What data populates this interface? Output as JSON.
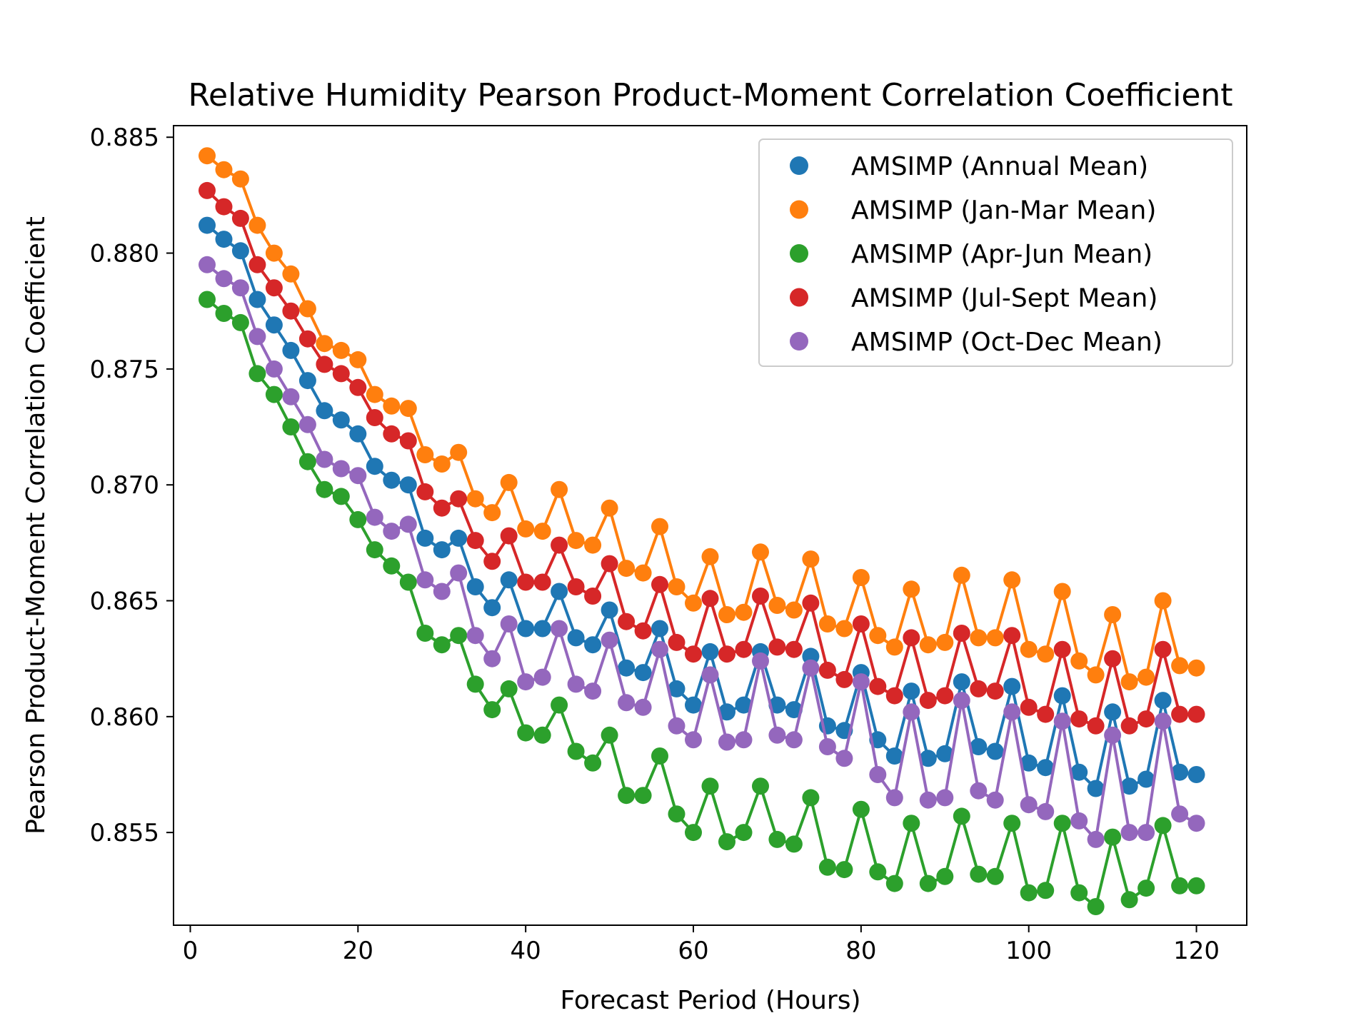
{
  "chart_data": {
    "type": "line",
    "title": "Relative Humidity Pearson Product-Moment Correlation Coefficient",
    "xlabel": "Forecast Period (Hours)",
    "ylabel": "Pearson Product-Moment Correlation Coefficient",
    "xlim": [
      -2,
      126
    ],
    "ylim": [
      0.851,
      0.8855
    ],
    "x_ticks": [
      0,
      20,
      40,
      60,
      80,
      100,
      120
    ],
    "y_ticks": [
      0.855,
      0.86,
      0.865,
      0.87,
      0.875,
      0.88,
      0.885
    ],
    "x_tick_labels": [
      "0",
      "20",
      "40",
      "60",
      "80",
      "100",
      "120"
    ],
    "y_tick_labels": [
      "0.855",
      "0.860",
      "0.865",
      "0.870",
      "0.875",
      "0.880",
      "0.885"
    ],
    "grid": false,
    "legend_position": "upper right",
    "x": [
      2,
      4,
      6,
      8,
      10,
      12,
      14,
      16,
      18,
      20,
      22,
      24,
      26,
      28,
      30,
      32,
      34,
      36,
      38,
      40,
      42,
      44,
      46,
      48,
      50,
      52,
      54,
      56,
      58,
      60,
      62,
      64,
      66,
      68,
      70,
      72,
      74,
      76,
      78,
      80,
      82,
      84,
      86,
      88,
      90,
      92,
      94,
      96,
      98,
      100,
      102,
      104,
      106,
      108,
      110,
      112,
      114,
      116,
      118,
      120
    ],
    "series": [
      {
        "name": "AMSIMP (Annual Mean)",
        "color": "#1f77b4",
        "values": [
          0.8812,
          0.8806,
          0.8801,
          0.878,
          0.8769,
          0.8758,
          0.8745,
          0.8732,
          0.8728,
          0.8722,
          0.8708,
          0.8702,
          0.87,
          0.8677,
          0.8672,
          0.8677,
          0.8656,
          0.8647,
          0.8659,
          0.8638,
          0.8638,
          0.8654,
          0.8634,
          0.8631,
          0.8646,
          0.8621,
          0.8619,
          0.8638,
          0.8612,
          0.8605,
          0.8628,
          0.8602,
          0.8605,
          0.8628,
          0.8605,
          0.8603,
          0.8626,
          0.8596,
          0.8594,
          0.8619,
          0.859,
          0.8583,
          0.8611,
          0.8582,
          0.8584,
          0.8615,
          0.8587,
          0.8585,
          0.8613,
          0.858,
          0.8578,
          0.8609,
          0.8576,
          0.8569,
          0.8602,
          0.857,
          0.8573,
          0.8607,
          0.8576,
          0.8575
        ]
      },
      {
        "name": "AMSIMP (Jan-Mar Mean)",
        "color": "#ff7f0e",
        "values": [
          0.8842,
          0.8836,
          0.8832,
          0.8812,
          0.88,
          0.8791,
          0.8776,
          0.8761,
          0.8758,
          0.8754,
          0.8739,
          0.8734,
          0.8733,
          0.8713,
          0.8709,
          0.8714,
          0.8694,
          0.8688,
          0.8701,
          0.8681,
          0.868,
          0.8698,
          0.8676,
          0.8674,
          0.869,
          0.8664,
          0.8662,
          0.8682,
          0.8656,
          0.8649,
          0.8669,
          0.8644,
          0.8645,
          0.8671,
          0.8648,
          0.8646,
          0.8668,
          0.864,
          0.8638,
          0.866,
          0.8635,
          0.863,
          0.8655,
          0.8631,
          0.8632,
          0.8661,
          0.8634,
          0.8634,
          0.8659,
          0.8629,
          0.8627,
          0.8654,
          0.8624,
          0.8618,
          0.8644,
          0.8615,
          0.8617,
          0.865,
          0.8622,
          0.8621
        ]
      },
      {
        "name": "AMSIMP (Apr-Jun Mean)",
        "color": "#2ca02c",
        "values": [
          0.878,
          0.8774,
          0.877,
          0.8748,
          0.8739,
          0.8725,
          0.871,
          0.8698,
          0.8695,
          0.8685,
          0.8672,
          0.8665,
          0.8658,
          0.8636,
          0.8631,
          0.8635,
          0.8614,
          0.8603,
          0.8612,
          0.8593,
          0.8592,
          0.8605,
          0.8585,
          0.858,
          0.8592,
          0.8566,
          0.8566,
          0.8583,
          0.8558,
          0.855,
          0.857,
          0.8546,
          0.855,
          0.857,
          0.8547,
          0.8545,
          0.8565,
          0.8535,
          0.8534,
          0.856,
          0.8533,
          0.8528,
          0.8554,
          0.8528,
          0.8531,
          0.8557,
          0.8532,
          0.8531,
          0.8554,
          0.8524,
          0.8525,
          0.8554,
          0.8524,
          0.8518,
          0.8548,
          0.8521,
          0.8526,
          0.8553,
          0.8527,
          0.8527
        ]
      },
      {
        "name": "AMSIMP (Jul-Sept Mean)",
        "color": "#d62728",
        "values": [
          0.8827,
          0.882,
          0.8815,
          0.8795,
          0.8785,
          0.8775,
          0.8763,
          0.8752,
          0.8748,
          0.8742,
          0.8729,
          0.8722,
          0.8719,
          0.8697,
          0.869,
          0.8694,
          0.8676,
          0.8667,
          0.8678,
          0.8658,
          0.8658,
          0.8674,
          0.8656,
          0.8652,
          0.8666,
          0.8641,
          0.8637,
          0.8657,
          0.8632,
          0.8627,
          0.8651,
          0.8627,
          0.8629,
          0.8652,
          0.863,
          0.8629,
          0.8649,
          0.862,
          0.8616,
          0.864,
          0.8613,
          0.8609,
          0.8634,
          0.8607,
          0.8609,
          0.8636,
          0.8612,
          0.8611,
          0.8635,
          0.8604,
          0.8601,
          0.8629,
          0.8599,
          0.8596,
          0.8625,
          0.8596,
          0.8599,
          0.8629,
          0.8601,
          0.8601
        ]
      },
      {
        "name": "AMSIMP (Oct-Dec Mean)",
        "color": "#9467bd",
        "values": [
          0.8795,
          0.8789,
          0.8785,
          0.8764,
          0.875,
          0.8738,
          0.8726,
          0.8711,
          0.8707,
          0.8704,
          0.8686,
          0.868,
          0.8683,
          0.8659,
          0.8654,
          0.8662,
          0.8635,
          0.8625,
          0.864,
          0.8615,
          0.8617,
          0.8638,
          0.8614,
          0.8611,
          0.8633,
          0.8606,
          0.8604,
          0.8629,
          0.8596,
          0.859,
          0.8618,
          0.8589,
          0.859,
          0.8624,
          0.8592,
          0.859,
          0.8621,
          0.8587,
          0.8582,
          0.8615,
          0.8575,
          0.8565,
          0.8602,
          0.8564,
          0.8565,
          0.8607,
          0.8568,
          0.8564,
          0.8602,
          0.8562,
          0.8559,
          0.8598,
          0.8555,
          0.8547,
          0.8592,
          0.855,
          0.855,
          0.8598,
          0.8558,
          0.8554
        ]
      }
    ]
  }
}
